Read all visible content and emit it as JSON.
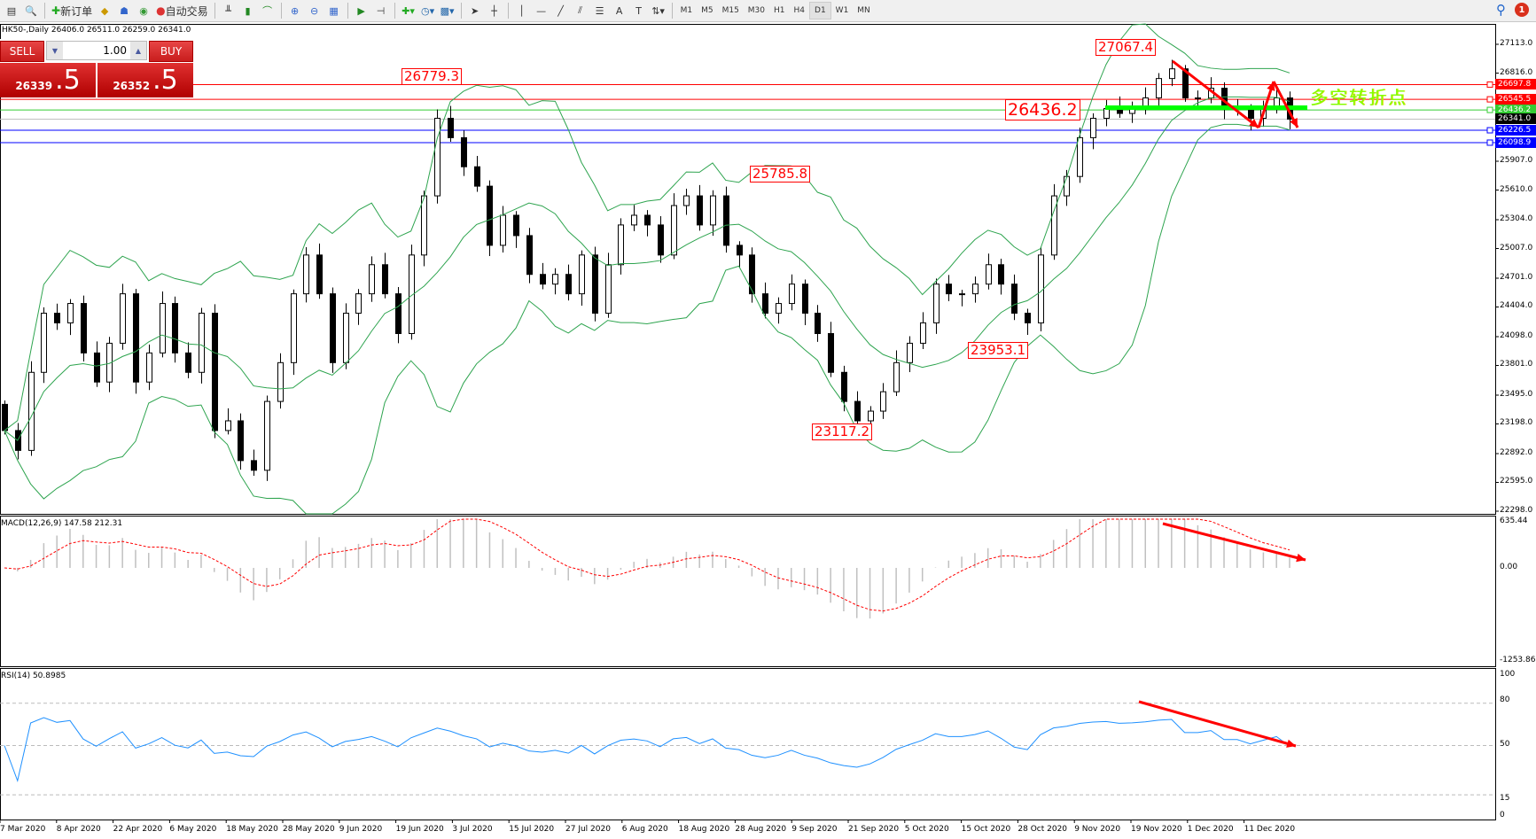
{
  "toolbar": {
    "new_order": "新订单",
    "auto_trading": "自动交易",
    "timeframes": [
      "M1",
      "M5",
      "M15",
      "M30",
      "H1",
      "H4",
      "D1",
      "W1",
      "MN"
    ],
    "active_timeframe": "D1",
    "notifications_count": "1"
  },
  "symbol_info": "HK50-,Daily  26406.0 26511.0 26259.0 26341.0",
  "trade_panel": {
    "sell_label": "SELL",
    "buy_label": "BUY",
    "lot": "1.00",
    "sell_main": "26339",
    "sell_frac": ".5",
    "buy_main": "26352",
    "buy_frac": ".5"
  },
  "annotation_text": "多空转折点",
  "colors": {
    "up": "#ffffff",
    "down": "#000000",
    "bands": "#2ea44f",
    "resistance": "#ff0000",
    "pivot": "#33cc33",
    "support": "#0000ff",
    "arrow": "#ff0000",
    "macd_signal": "#ff0000",
    "rsi": "#1e90ff",
    "pivot_bar": "#00ff00"
  },
  "chart_data": {
    "type": "candlestick",
    "instrument": "HK50-",
    "period": "Daily",
    "ylim": [
      22298.0,
      27113.0
    ],
    "y_ticks": [
      "27113.0",
      "26816.0",
      "25907.0",
      "25610.0",
      "25304.0",
      "25007.0",
      "24701.0",
      "24404.0",
      "24098.0",
      "23801.0",
      "23495.0",
      "23198.0",
      "22892.0",
      "22595.0",
      "22298.0"
    ],
    "x_ticks": [
      "7 Mar 2020",
      "8 Apr 2020",
      "22 Apr 2020",
      "6 May 2020",
      "18 May 2020",
      "28 May 2020",
      "9 Jun 2020",
      "19 Jun 2020",
      "3 Jul 2020",
      "15 Jul 2020",
      "27 Jul 2020",
      "6 Aug 2020",
      "18 Aug 2020",
      "28 Aug 2020",
      "9 Sep 2020",
      "21 Sep 2020",
      "5 Oct 2020",
      "15 Oct 2020",
      "28 Oct 2020",
      "9 Nov 2020",
      "19 Nov 2020",
      "1 Dec 2020",
      "11 Dec 2020"
    ],
    "close": [
      23130,
      22925,
      23730,
      24340,
      24240,
      24440,
      23930,
      23630,
      24030,
      24540,
      23630,
      23930,
      24440,
      23930,
      23730,
      24340,
      23130,
      23230,
      22820,
      22720,
      23430,
      23830,
      24540,
      24940,
      24540,
      23830,
      24340,
      24540,
      24840,
      24540,
      24130,
      24940,
      25550,
      26350,
      26150,
      25850,
      25650,
      25040,
      25350,
      25140,
      24740,
      24640,
      24740,
      24540,
      24940,
      24340,
      24840,
      25250,
      25350,
      25250,
      24940,
      25450,
      25550,
      25250,
      25550,
      25040,
      24940,
      24540,
      24340,
      24440,
      24640,
      24340,
      24130,
      23730,
      23430,
      23230,
      23330,
      23530,
      23830,
      24030,
      24240,
      24640,
      24540,
      24540,
      24640,
      24840,
      24640,
      24340,
      24240,
      24940,
      25550,
      25750,
      26150,
      26350,
      26450,
      26400,
      26450,
      26560,
      26760,
      26860,
      26560,
      26560,
      26660,
      26450,
      26450,
      26350,
      26450,
      26560,
      26341
    ],
    "levels": [
      {
        "value": 26697.8,
        "label": "26697.8",
        "kind": "resistance"
      },
      {
        "value": 26545.5,
        "label": "26545.5",
        "kind": "resistance"
      },
      {
        "value": 26436.2,
        "label": "26436.2",
        "kind": "pivot"
      },
      {
        "value": 26341.0,
        "label": "26341.0",
        "kind": "bid"
      },
      {
        "value": 26226.5,
        "label": "26226.5",
        "kind": "support"
      },
      {
        "value": 26098.9,
        "label": "26098.9",
        "kind": "support"
      }
    ],
    "price_labels": [
      "26779.3",
      "27067.4",
      "25785.8",
      "26436.2",
      "23953.1",
      "23117.2"
    ],
    "macd": {
      "title": "MACD(12,26,9) 147.58 212.31",
      "ylim": [
        -1253.86,
        635.44
      ],
      "ticks": [
        "635.44",
        "0.00",
        "-1253.86"
      ]
    },
    "rsi": {
      "title": "RSI(14) 50.8985",
      "ylim": [
        0,
        100
      ],
      "ticks": [
        "100",
        "80",
        "50",
        "15",
        "0"
      ],
      "levels": [
        80,
        50,
        15
      ]
    }
  }
}
